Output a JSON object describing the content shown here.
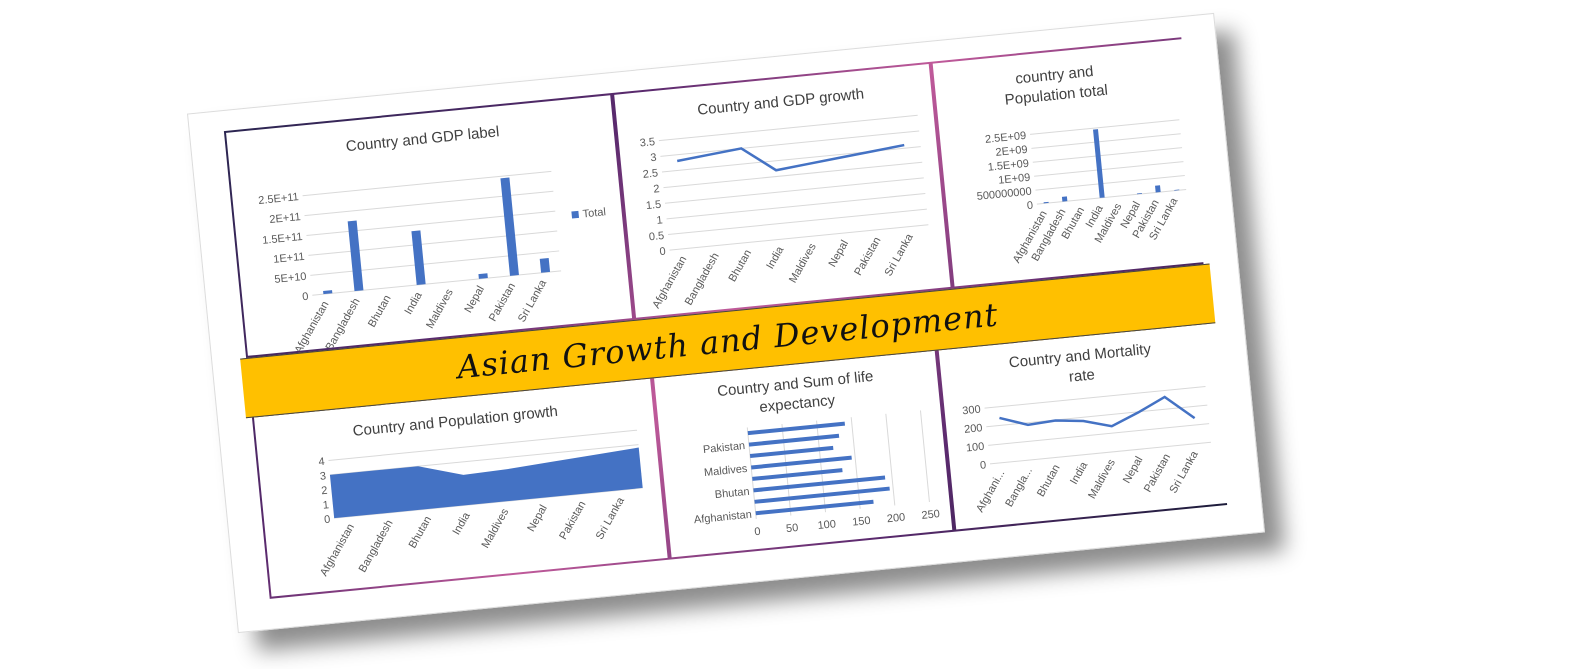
{
  "banner": {
    "title": "Asian Growth and Development"
  },
  "colors": {
    "series": "#4472c4",
    "banner": "#ffc000",
    "grid": "#d9d9d9",
    "text": "#595959"
  },
  "chart_data": [
    {
      "type": "bar",
      "title": "Country and GDP label",
      "categories": [
        "Afghanistan",
        "Bangladesh",
        "Bhutan",
        "India",
        "Maldives",
        "Nepal",
        "Pakistan",
        "Sri Lanka"
      ],
      "series": [
        {
          "name": "Total",
          "values": [
            8000000000,
            175000000000,
            0,
            135000000000,
            0,
            12000000000,
            245000000000,
            35000000000
          ]
        }
      ],
      "yticks": [
        "0",
        "5E+10",
        "1E+11",
        "1.5E+11",
        "2E+11",
        "2.5E+11"
      ],
      "ylim": [
        0,
        250000000000
      ],
      "legend": "right",
      "grid": true
    },
    {
      "type": "line",
      "title": "Country and GDP growth",
      "categories": [
        "Afghanistan",
        "Bangladesh",
        "Bhutan",
        "India",
        "Maldives",
        "Nepal",
        "Pakistan",
        "Sri Lanka"
      ],
      "series": [
        {
          "values": [
            2.8,
            2.9,
            3.0,
            2.2,
            2.3,
            2.4,
            2.5,
            2.6
          ]
        }
      ],
      "yticks": [
        "0",
        "0.5",
        "1",
        "1.5",
        "2",
        "2.5",
        "3",
        "3.5"
      ],
      "ylim": [
        0,
        3.5
      ],
      "grid": true
    },
    {
      "type": "bar",
      "title": "country and Population total",
      "title_lines": [
        "country and",
        "Population total"
      ],
      "categories": [
        "Afghanistan",
        "Bangladesh",
        "Bhutan",
        "India",
        "Maldives",
        "Nepal",
        "Pakistan",
        "Sri Lanka"
      ],
      "series": [
        {
          "values": [
            40000000,
            170000000,
            1000000,
            2450000000,
            500000,
            30000000,
            240000000,
            22000000
          ]
        }
      ],
      "yticks": [
        "0",
        "500000000",
        "1E+09",
        "1.5E+09",
        "2E+09",
        "2.5E+09"
      ],
      "ylim": [
        0,
        2500000000
      ],
      "grid": true
    },
    {
      "type": "area",
      "title": "Country and Population growth",
      "categories": [
        "Afghanistan",
        "Bangladesh",
        "Bhutan",
        "India",
        "Maldives",
        "Nepal",
        "Pakistan",
        "Sri Lanka"
      ],
      "series": [
        {
          "values": [
            3.0,
            3.0,
            3.0,
            2.1,
            2.2,
            2.4,
            2.6,
            2.8
          ]
        }
      ],
      "yticks": [
        "0",
        "1",
        "2",
        "3",
        "4"
      ],
      "ylim": [
        0,
        4
      ],
      "grid": true
    },
    {
      "type": "bar",
      "orientation": "horizontal",
      "title": "Country and Sum of life expectancy",
      "title_lines": [
        "Country and Sum of life",
        "expectancy"
      ],
      "categories": [
        "Afghanistan",
        "Bangladesh",
        "Bhutan",
        "India",
        "Maldives",
        "Nepal",
        "Pakistan",
        "Sri Lanka"
      ],
      "category_labels_shown": [
        "Afghanistan",
        "Bhutan",
        "Maldives",
        "Pakistan"
      ],
      "series": [
        {
          "values": [
            170,
            195,
            190,
            130,
            145,
            120,
            130,
            140
          ]
        }
      ],
      "xticks": [
        "0",
        "50",
        "100",
        "150",
        "200",
        "250"
      ],
      "xlim": [
        0,
        250
      ],
      "grid": true
    },
    {
      "type": "line",
      "title": "Country and Mortality rate",
      "title_lines": [
        "Country and Mortality",
        "rate"
      ],
      "categories": [
        "Afghani...",
        "Bangla...",
        "Bhutan",
        "India",
        "Maldives",
        "Nepal",
        "Pakistan",
        "Sri Lanka"
      ],
      "series": [
        {
          "values": [
            280,
            220,
            230,
            210,
            160,
            230,
            310,
            160
          ]
        }
      ],
      "yticks": [
        "0",
        "100",
        "200",
        "300"
      ],
      "ylim": [
        0,
        350
      ],
      "grid": true
    }
  ]
}
